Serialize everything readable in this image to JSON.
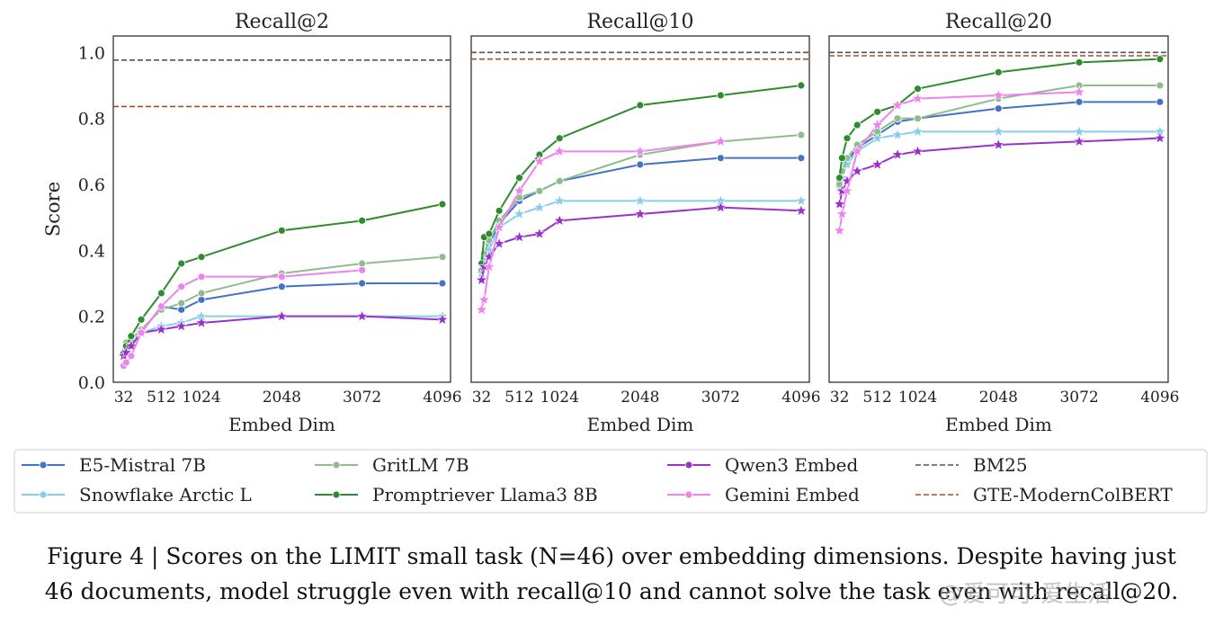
{
  "chart_data": {
    "type": "line",
    "y_axis_label": "Score",
    "x_axis_label": "Embed Dim",
    "x_ticks": [
      32,
      512,
      1024,
      2048,
      3072,
      4096
    ],
    "y_ticks": [
      "0.0",
      "0.2",
      "0.4",
      "0.6",
      "0.8",
      "1.0"
    ],
    "ylim": [
      0,
      1.05
    ],
    "xlim": [
      -100,
      4200
    ],
    "grid": false,
    "legend_position": "bottom",
    "colors": {
      "E5-Mistral 7B": "#4472c4",
      "Snowflake Arctic L": "#87ceeb",
      "GritLM 7B": "#8fbc8f",
      "Promptriever Llama3 8B": "#2e8b2e",
      "Qwen3 Embed": "#9932cc",
      "Gemini Embed": "#ee82ee",
      "BM25": "#555555",
      "GTE-ModernColBERT": "#a0522d"
    },
    "panels": [
      {
        "title": "Recall@2",
        "baselines": [
          {
            "name": "BM25",
            "value": 0.977
          },
          {
            "name": "GTE-ModernColBERT",
            "value": 0.836
          }
        ],
        "series": [
          {
            "name": "E5-Mistral 7B",
            "marker": "circle",
            "x": [
              32,
              64,
              128,
              256,
              512,
              768,
              1024,
              2048,
              3072,
              4096
            ],
            "y": [
              0.09,
              0.11,
              0.12,
              0.15,
              0.23,
              0.22,
              0.25,
              0.29,
              0.3,
              0.3
            ]
          },
          {
            "name": "Snowflake Arctic L",
            "marker": "star",
            "x": [
              32,
              64,
              128,
              256,
              512,
              768,
              1024,
              2048,
              3072,
              4096
            ],
            "y": [
              0.08,
              0.1,
              0.12,
              0.15,
              0.17,
              0.18,
              0.2,
              0.2,
              0.2,
              0.2
            ]
          },
          {
            "name": "GritLM 7B",
            "marker": "circle",
            "x": [
              32,
              64,
              128,
              256,
              512,
              768,
              1024,
              2048,
              3072,
              4096
            ],
            "y": [
              0.09,
              0.12,
              0.13,
              0.16,
              0.22,
              0.24,
              0.27,
              0.33,
              0.36,
              0.38
            ]
          },
          {
            "name": "Promptriever Llama3 8B",
            "marker": "circle",
            "x": [
              32,
              64,
              128,
              256,
              512,
              768,
              1024,
              2048,
              3072,
              4096
            ],
            "y": [
              0.09,
              0.11,
              0.14,
              0.19,
              0.27,
              0.36,
              0.38,
              0.46,
              0.49,
              0.54
            ]
          },
          {
            "name": "Qwen3 Embed",
            "marker": "star",
            "x": [
              32,
              64,
              128,
              256,
              512,
              768,
              1024,
              2048,
              3072,
              4096
            ],
            "y": [
              0.08,
              0.09,
              0.11,
              0.15,
              0.16,
              0.17,
              0.18,
              0.2,
              0.2,
              0.19
            ]
          },
          {
            "name": "Gemini Embed",
            "marker": "circle",
            "x": [
              32,
              64,
              128,
              256,
              512,
              768,
              1024,
              2048,
              3072
            ],
            "y": [
              0.05,
              0.06,
              0.08,
              0.15,
              0.23,
              0.29,
              0.32,
              0.32,
              0.34
            ]
          }
        ]
      },
      {
        "title": "Recall@10",
        "baselines": [
          {
            "name": "BM25",
            "value": 1.0
          },
          {
            "name": "GTE-ModernColBERT",
            "value": 0.98
          }
        ],
        "series": [
          {
            "name": "E5-Mistral 7B",
            "marker": "circle",
            "x": [
              32,
              64,
              128,
              256,
              512,
              768,
              1024,
              2048,
              3072,
              4096
            ],
            "y": [
              0.34,
              0.38,
              0.42,
              0.48,
              0.55,
              0.58,
              0.61,
              0.66,
              0.68,
              0.68
            ]
          },
          {
            "name": "Snowflake Arctic L",
            "marker": "star",
            "x": [
              32,
              64,
              128,
              256,
              512,
              768,
              1024,
              2048,
              3072,
              4096
            ],
            "y": [
              0.33,
              0.37,
              0.4,
              0.47,
              0.51,
              0.53,
              0.55,
              0.55,
              0.55,
              0.55
            ]
          },
          {
            "name": "GritLM 7B",
            "marker": "circle",
            "x": [
              32,
              64,
              128,
              256,
              512,
              768,
              1024,
              2048,
              3072,
              4096
            ],
            "y": [
              0.34,
              0.39,
              0.43,
              0.49,
              0.56,
              0.58,
              0.61,
              0.69,
              0.73,
              0.75
            ]
          },
          {
            "name": "Promptriever Llama3 8B",
            "marker": "circle",
            "x": [
              32,
              64,
              128,
              256,
              512,
              768,
              1024,
              2048,
              3072,
              4096
            ],
            "y": [
              0.36,
              0.44,
              0.45,
              0.52,
              0.62,
              0.69,
              0.74,
              0.84,
              0.87,
              0.9
            ]
          },
          {
            "name": "Qwen3 Embed",
            "marker": "star",
            "x": [
              32,
              64,
              128,
              256,
              512,
              768,
              1024,
              2048,
              3072,
              4096
            ],
            "y": [
              0.31,
              0.35,
              0.38,
              0.42,
              0.44,
              0.45,
              0.49,
              0.51,
              0.53,
              0.52
            ]
          },
          {
            "name": "Gemini Embed",
            "marker": "star",
            "x": [
              32,
              64,
              128,
              256,
              512,
              768,
              1024,
              2048,
              3072
            ],
            "y": [
              0.22,
              0.25,
              0.35,
              0.47,
              0.58,
              0.67,
              0.7,
              0.7,
              0.73
            ]
          }
        ]
      },
      {
        "title": "Recall@20",
        "baselines": [
          {
            "name": "BM25",
            "value": 1.0
          },
          {
            "name": "GTE-ModernColBERT",
            "value": 0.99
          }
        ],
        "series": [
          {
            "name": "E5-Mistral 7B",
            "marker": "circle",
            "x": [
              32,
              64,
              128,
              256,
              512,
              768,
              1024,
              2048,
              3072,
              4096
            ],
            "y": [
              0.61,
              0.64,
              0.67,
              0.71,
              0.75,
              0.79,
              0.8,
              0.83,
              0.85,
              0.85
            ]
          },
          {
            "name": "Snowflake Arctic L",
            "marker": "star",
            "x": [
              32,
              64,
              128,
              256,
              512,
              768,
              1024,
              2048,
              3072,
              4096
            ],
            "y": [
              0.59,
              0.62,
              0.66,
              0.7,
              0.74,
              0.75,
              0.76,
              0.76,
              0.76,
              0.76
            ]
          },
          {
            "name": "GritLM 7B",
            "marker": "circle",
            "x": [
              32,
              64,
              128,
              256,
              512,
              768,
              1024,
              2048,
              3072,
              4096
            ],
            "y": [
              0.6,
              0.64,
              0.68,
              0.72,
              0.76,
              0.8,
              0.8,
              0.86,
              0.9,
              0.9
            ]
          },
          {
            "name": "Promptriever Llama3 8B",
            "marker": "circle",
            "x": [
              32,
              64,
              128,
              256,
              512,
              768,
              1024,
              2048,
              3072,
              4096
            ],
            "y": [
              0.62,
              0.68,
              0.74,
              0.78,
              0.82,
              0.84,
              0.89,
              0.94,
              0.97,
              0.98
            ]
          },
          {
            "name": "Qwen3 Embed",
            "marker": "star",
            "x": [
              32,
              64,
              128,
              256,
              512,
              768,
              1024,
              2048,
              3072,
              4096
            ],
            "y": [
              0.54,
              0.58,
              0.61,
              0.64,
              0.66,
              0.69,
              0.7,
              0.72,
              0.73,
              0.74
            ]
          },
          {
            "name": "Gemini Embed",
            "marker": "star",
            "x": [
              32,
              64,
              128,
              256,
              512,
              768,
              1024,
              2048,
              3072
            ],
            "y": [
              0.46,
              0.51,
              0.58,
              0.7,
              0.78,
              0.84,
              0.86,
              0.87,
              0.88
            ]
          }
        ]
      }
    ],
    "legend": [
      "E5-Mistral 7B",
      "Snowflake Arctic L",
      "GritLM 7B",
      "Promptriever Llama3 8B",
      "Qwen3 Embed",
      "Gemini Embed",
      "BM25",
      "GTE-ModernColBERT"
    ]
  },
  "caption": {
    "line1": "Figure 4 | Scores on the LIMIT small task (N=46) over embedding dimensions. Despite having just",
    "line2": "46 documents, model struggle even with recall@10 and cannot solve the task even with recall@20."
  },
  "watermark": "@爱可可-爱生活"
}
